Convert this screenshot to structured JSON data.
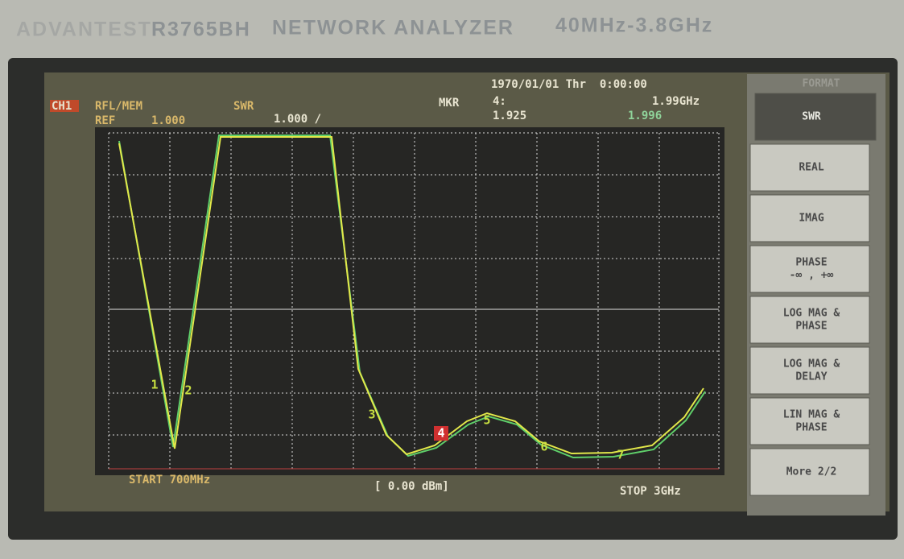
{
  "header": {
    "brand": "ADVANTEST",
    "model": "R3765BH",
    "name": "NETWORK ANALYZER",
    "range": "40MHz-3.8GHz"
  },
  "screen": {
    "datetime": "1970/01/01 Thr  0:00:00",
    "channel": "CH1",
    "measurement": "RFL/MEM",
    "format": "SWR",
    "ref_label": "REF",
    "ref_value": "1.000",
    "scale": "1.000 /",
    "marker_label": "MKR",
    "marker_number": "4:",
    "marker_freq": "1.99GHz",
    "marker_value": "1.925",
    "marker_value_mem": "1.996",
    "start": "START 700MHz",
    "power": "[ 0.00 dBm]",
    "stop": "STOP 3GHz",
    "markers": [
      "1",
      "2",
      "3",
      "4",
      "5",
      "6",
      "7"
    ]
  },
  "softkeys": {
    "title": "FORMAT",
    "keys": [
      [
        "SWR"
      ],
      [
        "REAL"
      ],
      [
        "IMAG"
      ],
      [
        "PHASE",
        "-∞ , +∞"
      ],
      [
        "LOG MAG &",
        "PHASE"
      ],
      [
        "LOG MAG &",
        "DELAY"
      ],
      [
        "LIN MAG &",
        "PHASE"
      ],
      [
        "More 2/2"
      ]
    ]
  }
}
